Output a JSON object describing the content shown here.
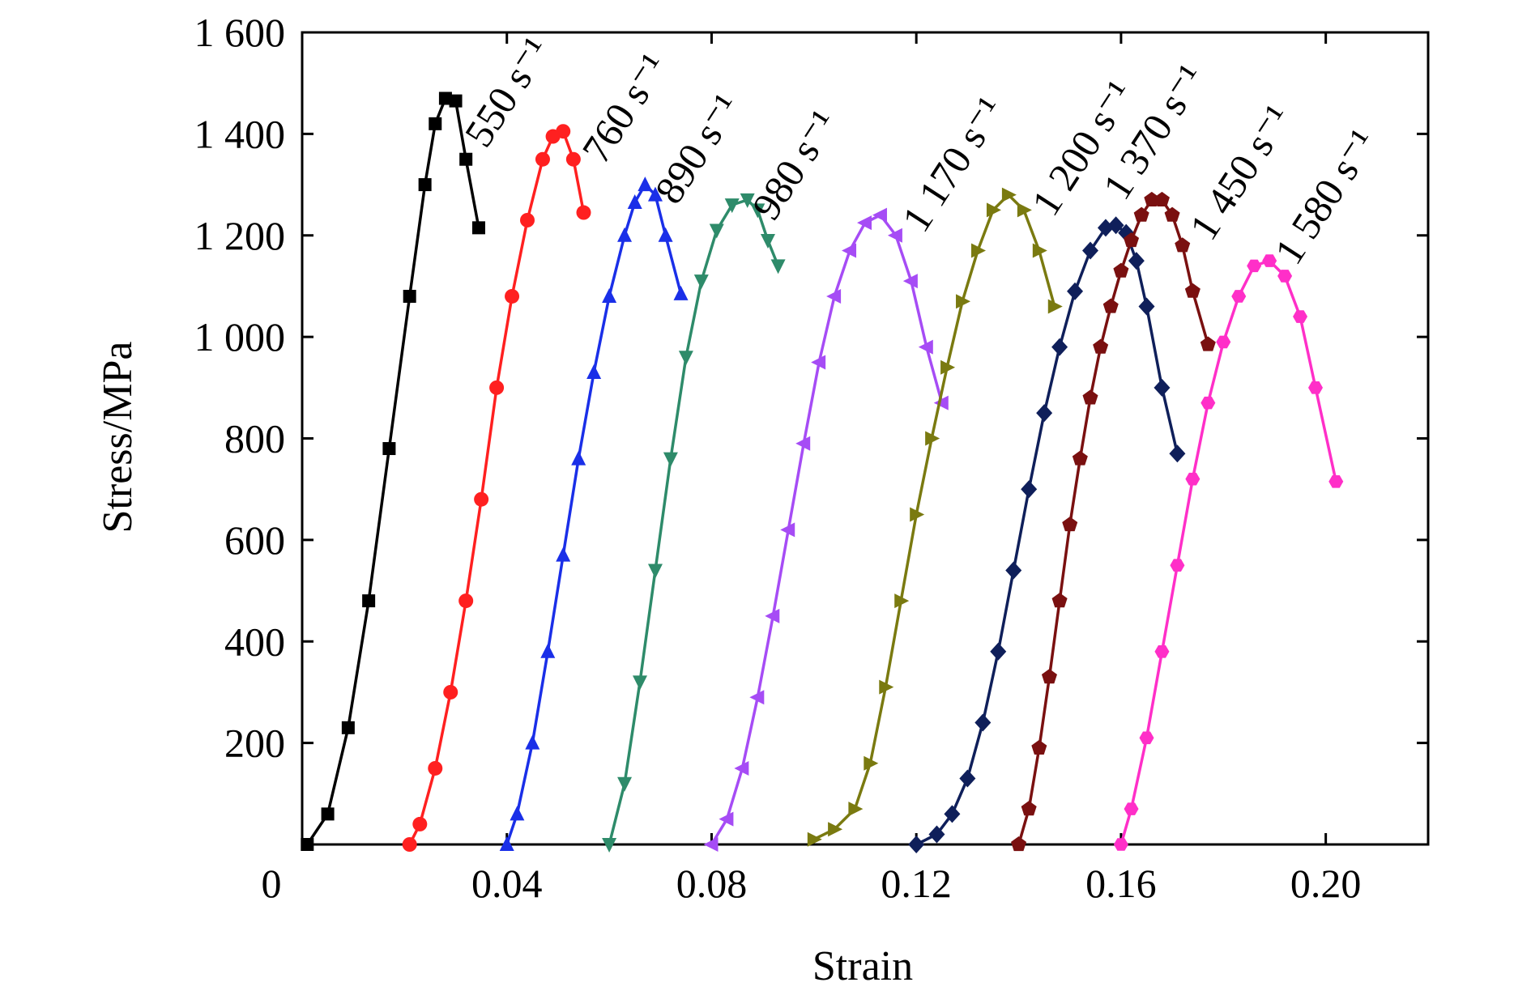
{
  "chart_data": {
    "type": "line",
    "title": "",
    "xlabel": "Strain",
    "ylabel": "Stress/MPa",
    "xlim": [
      0,
      0.22
    ],
    "ylim": [
      0,
      1600
    ],
    "xticks": [
      0,
      0.04,
      0.08,
      0.12,
      0.16,
      0.2
    ],
    "xtick_labels": [
      "0",
      "0.04",
      "0.08",
      "0.12",
      "0.16",
      "0.20"
    ],
    "yticks": [
      200,
      400,
      600,
      800,
      1000,
      1200,
      1400,
      1600
    ],
    "ytick_labels": [
      "200",
      "400",
      "600",
      "800",
      "1 000",
      "1 200",
      "1 400",
      "1 600"
    ],
    "grid": false,
    "legend": "none",
    "series": [
      {
        "label": "550 s⁻¹",
        "color": "#000000",
        "marker": "square",
        "x": [
          0.001,
          0.005,
          0.009,
          0.013,
          0.017,
          0.021,
          0.024,
          0.026,
          0.028,
          0.03,
          0.032,
          0.0345
        ],
        "y": [
          0,
          60,
          230,
          480,
          780,
          1080,
          1300,
          1420,
          1470,
          1465,
          1350,
          1215
        ]
      },
      {
        "label": "760 s⁻¹",
        "color": "#ff2020",
        "marker": "circle",
        "x": [
          0.021,
          0.023,
          0.026,
          0.029,
          0.032,
          0.035,
          0.038,
          0.041,
          0.044,
          0.047,
          0.049,
          0.051,
          0.053,
          0.055
        ],
        "y": [
          0,
          40,
          150,
          300,
          480,
          680,
          900,
          1080,
          1230,
          1350,
          1395,
          1405,
          1350,
          1245
        ]
      },
      {
        "label": "890 s⁻¹",
        "color": "#1a2fe8",
        "marker": "triangle-up",
        "x": [
          0.04,
          0.042,
          0.045,
          0.048,
          0.051,
          0.054,
          0.057,
          0.06,
          0.063,
          0.065,
          0.067,
          0.069,
          0.071,
          0.074
        ],
        "y": [
          0,
          60,
          200,
          380,
          570,
          760,
          930,
          1080,
          1200,
          1265,
          1300,
          1280,
          1200,
          1085
        ]
      },
      {
        "label": "980 s⁻¹",
        "color": "#2e8b6a",
        "marker": "triangle-down",
        "x": [
          0.06,
          0.063,
          0.066,
          0.069,
          0.072,
          0.075,
          0.078,
          0.081,
          0.084,
          0.087,
          0.089,
          0.091,
          0.093
        ],
        "y": [
          0,
          120,
          320,
          540,
          760,
          960,
          1110,
          1210,
          1260,
          1270,
          1250,
          1190,
          1140
        ]
      },
      {
        "label": "1 170 s⁻¹",
        "color": "#a64cf5",
        "marker": "triangle-left",
        "x": [
          0.08,
          0.083,
          0.086,
          0.089,
          0.092,
          0.095,
          0.098,
          0.101,
          0.104,
          0.107,
          0.11,
          0.113,
          0.116,
          0.119,
          0.122,
          0.125
        ],
        "y": [
          0,
          50,
          150,
          290,
          450,
          620,
          790,
          950,
          1080,
          1170,
          1225,
          1240,
          1200,
          1110,
          980,
          870
        ]
      },
      {
        "label": "1 200 s⁻¹",
        "color": "#7a7a10",
        "marker": "triangle-right",
        "x": [
          0.1,
          0.104,
          0.108,
          0.111,
          0.114,
          0.117,
          0.12,
          0.123,
          0.126,
          0.129,
          0.132,
          0.135,
          0.138,
          0.141,
          0.144,
          0.147
        ],
        "y": [
          10,
          30,
          70,
          160,
          310,
          480,
          650,
          800,
          940,
          1070,
          1170,
          1250,
          1280,
          1250,
          1170,
          1060
        ]
      },
      {
        "label": "1 370 s⁻¹",
        "color": "#0f1f5a",
        "marker": "diamond",
        "x": [
          0.12,
          0.124,
          0.127,
          0.13,
          0.133,
          0.136,
          0.139,
          0.142,
          0.145,
          0.148,
          0.151,
          0.154,
          0.157,
          0.159,
          0.161,
          0.163,
          0.165,
          0.168,
          0.171
        ],
        "y": [
          0,
          20,
          60,
          130,
          240,
          380,
          540,
          700,
          850,
          980,
          1090,
          1170,
          1215,
          1220,
          1205,
          1150,
          1060,
          900,
          770
        ]
      },
      {
        "label": "1 450 s⁻¹",
        "color": "#7a1010",
        "marker": "pentagon",
        "x": [
          0.14,
          0.142,
          0.144,
          0.146,
          0.148,
          0.15,
          0.152,
          0.154,
          0.156,
          0.158,
          0.16,
          0.162,
          0.164,
          0.166,
          0.168,
          0.17,
          0.172,
          0.174,
          0.177
        ],
        "y": [
          0,
          70,
          190,
          330,
          480,
          630,
          760,
          880,
          980,
          1060,
          1130,
          1190,
          1240,
          1270,
          1270,
          1240,
          1180,
          1090,
          985
        ]
      },
      {
        "label": "1 580 s⁻¹",
        "color": "#ff2fc8",
        "marker": "hexagon",
        "x": [
          0.16,
          0.162,
          0.165,
          0.168,
          0.171,
          0.174,
          0.177,
          0.18,
          0.183,
          0.186,
          0.189,
          0.192,
          0.195,
          0.198,
          0.202
        ],
        "y": [
          0,
          70,
          210,
          380,
          550,
          720,
          870,
          990,
          1080,
          1140,
          1150,
          1120,
          1040,
          900,
          715
        ]
      }
    ]
  }
}
